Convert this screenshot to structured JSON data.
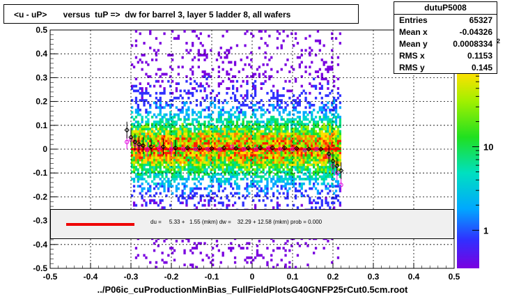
{
  "title": "<u - uP>       versus  tuP =>  dw for barrel 3, layer 5 ladder 8, all wafers",
  "stats": {
    "name": "dutuP5008",
    "rows": [
      {
        "label": "Entries",
        "value": "65327"
      },
      {
        "label": "Mean x",
        "value": "-0.04326"
      },
      {
        "label": "Mean y",
        "value": "0.0008334"
      },
      {
        "label": "RMS x",
        "value": "0.1153"
      },
      {
        "label": "RMS y",
        "value": "0.145"
      }
    ]
  },
  "legend": {
    "text": "du =     5.33 +   1.55 (mkm) dw =    32.29 + 12.58 (mkm) prob = 0.000",
    "line_color": "#ee0000"
  },
  "x_axis_title": "../P06ic_cuProductionMinBias_FullFieldPlotsG40GNFP25rCut0.5cm.root",
  "colorbar": {
    "ticks": [
      {
        "label": "1",
        "value": 1
      },
      {
        "label": "10",
        "value": 10
      }
    ],
    "exponent_label": "2",
    "log": true
  },
  "chart_data": {
    "type": "heatmap",
    "xlim": [
      -0.5,
      0.5
    ],
    "ylim": [
      -0.5,
      0.5
    ],
    "x_ticks": [
      "-0.5",
      "-0.4",
      "-0.3",
      "-0.2",
      "-0.1",
      "0",
      "0.1",
      "0.2",
      "0.3",
      "0.4",
      "0.5"
    ],
    "y_ticks": [
      "-0.5",
      "-0.4",
      "-0.3",
      "-0.2",
      "-0.1",
      "0",
      "0.1",
      "0.2",
      "0.3",
      "0.4",
      "0.5"
    ],
    "grid": true,
    "occupied_x_range": [
      -0.3,
      0.22
    ],
    "profile_black": [
      {
        "x": -0.31,
        "y": 0.08
      },
      {
        "x": -0.3,
        "y": 0.05
      },
      {
        "x": -0.29,
        "y": 0.03
      },
      {
        "x": -0.28,
        "y": 0.02
      },
      {
        "x": -0.27,
        "y": 0.015
      },
      {
        "x": -0.25,
        "y": 0.01
      },
      {
        "x": -0.22,
        "y": 0.01
      },
      {
        "x": -0.19,
        "y": 0.005
      },
      {
        "x": -0.16,
        "y": 0.005
      },
      {
        "x": -0.13,
        "y": 0.005
      },
      {
        "x": -0.1,
        "y": 0.003
      },
      {
        "x": -0.07,
        "y": 0.005
      },
      {
        "x": -0.04,
        "y": 0.003
      },
      {
        "x": -0.01,
        "y": 0.005
      },
      {
        "x": 0.02,
        "y": 0.005
      },
      {
        "x": 0.05,
        "y": 0.005
      },
      {
        "x": 0.08,
        "y": 0.005
      },
      {
        "x": 0.11,
        "y": 0.003
      },
      {
        "x": 0.14,
        "y": 0.0
      },
      {
        "x": 0.17,
        "y": 0.0
      },
      {
        "x": 0.19,
        "y": -0.02
      },
      {
        "x": 0.2,
        "y": -0.05
      },
      {
        "x": 0.21,
        "y": -0.07
      },
      {
        "x": 0.22,
        "y": -0.09
      }
    ],
    "profile_magenta": [
      {
        "x": -0.31,
        "y": 0.03
      },
      {
        "x": -0.3,
        "y": 0.04
      },
      {
        "x": -0.29,
        "y": 0.02
      },
      {
        "x": -0.28,
        "y": 0.01
      },
      {
        "x": -0.26,
        "y": 0.0
      },
      {
        "x": -0.23,
        "y": 0.005
      },
      {
        "x": -0.2,
        "y": 0.0
      },
      {
        "x": -0.17,
        "y": 0.0
      },
      {
        "x": -0.14,
        "y": 0.0
      },
      {
        "x": -0.11,
        "y": 0.0
      },
      {
        "x": -0.08,
        "y": 0.0
      },
      {
        "x": -0.05,
        "y": 0.01
      },
      {
        "x": -0.02,
        "y": 0.0
      },
      {
        "x": 0.01,
        "y": 0.0
      },
      {
        "x": 0.04,
        "y": 0.005
      },
      {
        "x": 0.07,
        "y": 0.0
      },
      {
        "x": 0.1,
        "y": 0.0
      },
      {
        "x": 0.13,
        "y": -0.005
      },
      {
        "x": 0.16,
        "y": 0.0
      },
      {
        "x": 0.19,
        "y": -0.03
      },
      {
        "x": 0.2,
        "y": -0.07
      },
      {
        "x": 0.21,
        "y": -0.1
      },
      {
        "x": 0.22,
        "y": -0.15
      }
    ],
    "fit_line": {
      "x": [
        -0.3,
        0.22
      ],
      "y": [
        0.0,
        0.0
      ],
      "color": "#ee0000"
    }
  }
}
